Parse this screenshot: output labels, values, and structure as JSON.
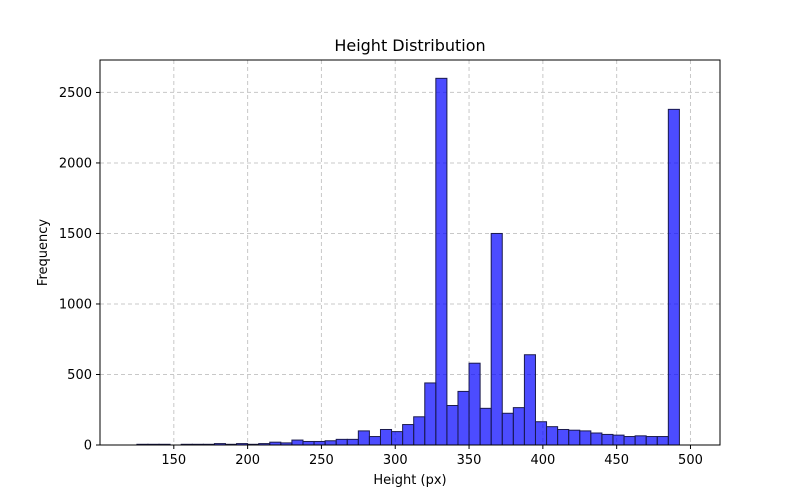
{
  "chart_data": {
    "type": "bar",
    "title": "Height Distribution",
    "xlabel": "Height (px)",
    "ylabel": "Frequency",
    "xlim": [
      100,
      520
    ],
    "ylim": [
      0,
      2730
    ],
    "grid": true,
    "legend": "none",
    "bar_color": "#0000ff",
    "bar_edge_color": "#1a1a4d",
    "grid_color": "#c8c8c8",
    "x_ticks": [
      150,
      200,
      250,
      300,
      350,
      400,
      450,
      500
    ],
    "y_ticks": [
      0,
      500,
      1000,
      1500,
      2000,
      2500
    ],
    "bin_start": 125,
    "bin_width": 7.5,
    "values": [
      5,
      5,
      5,
      0,
      5,
      5,
      5,
      10,
      5,
      10,
      5,
      10,
      20,
      15,
      35,
      25,
      25,
      30,
      40,
      40,
      100,
      60,
      110,
      95,
      145,
      200,
      440,
      2600,
      280,
      380,
      580,
      260,
      1500,
      225,
      265,
      640,
      165,
      130,
      110,
      105,
      100,
      85,
      75,
      70,
      60,
      65,
      60,
      60,
      2380
    ]
  }
}
